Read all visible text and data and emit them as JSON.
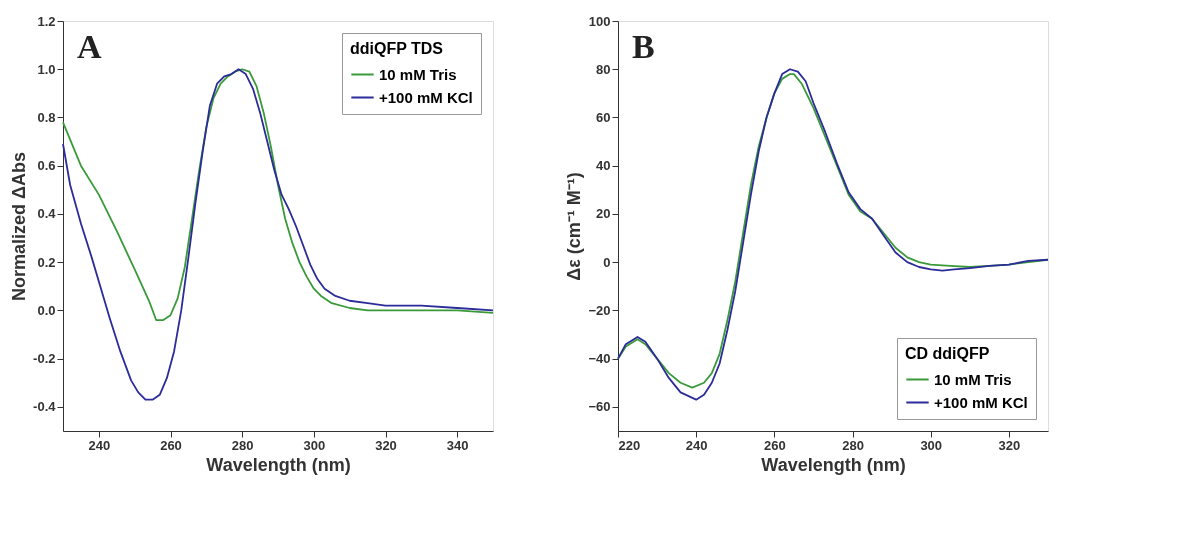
{
  "chart_data": [
    {
      "type": "line",
      "title": "A",
      "xlabel": "Wavelength (nm)",
      "ylabel": "Normalized ΔAbs",
      "legend_title": "ddiQFP TDS",
      "legend": "top right",
      "grid": false,
      "xlim": [
        230,
        350
      ],
      "xticks": [
        240,
        260,
        280,
        300,
        320,
        340
      ],
      "ylim": [
        -0.5,
        1.2
      ],
      "yticks": [
        {
          "value": -0.4,
          "label": "-0.4"
        },
        {
          "value": -0.2,
          "label": "-0.2"
        },
        {
          "value": 0,
          "label": "0.0"
        },
        {
          "value": 0.2,
          "label": "0.2"
        },
        {
          "value": 0.4,
          "label": "0.4"
        },
        {
          "value": 0.6,
          "label": "0.6"
        },
        {
          "value": 0.8,
          "label": "0.8"
        },
        {
          "value": 1,
          "label": "1.0"
        },
        {
          "value": 1.2,
          "label": "1.2"
        }
      ],
      "series": [
        {
          "name": "10 mM Tris",
          "color": "#3a9a3a",
          "x": [
            230,
            235,
            240,
            245,
            250,
            254,
            256,
            258,
            260,
            262,
            264,
            266,
            268,
            270,
            272,
            274,
            276,
            278,
            280,
            282,
            284,
            286,
            288,
            290,
            292,
            294,
            296,
            298,
            300,
            302,
            305,
            310,
            315,
            320,
            330,
            340,
            350
          ],
          "values": [
            0.78,
            0.6,
            0.48,
            0.33,
            0.17,
            0.04,
            -0.04,
            -0.04,
            -0.02,
            0.05,
            0.18,
            0.38,
            0.58,
            0.76,
            0.88,
            0.94,
            0.97,
            0.99,
            1.0,
            0.99,
            0.93,
            0.82,
            0.68,
            0.52,
            0.38,
            0.28,
            0.2,
            0.14,
            0.09,
            0.06,
            0.03,
            0.01,
            0.0,
            0.0,
            0.0,
            0.0,
            -0.01
          ]
        },
        {
          "name": "+100 mM KCl",
          "color": "#2b2b9a",
          "x": [
            230,
            232,
            235,
            238,
            240,
            243,
            246,
            249,
            251,
            253,
            255,
            257,
            259,
            261,
            263,
            265,
            267,
            269,
            271,
            273,
            275,
            277,
            279,
            281,
            283,
            285,
            287,
            289,
            291,
            293,
            295,
            297,
            299,
            301,
            303,
            306,
            310,
            315,
            320,
            330,
            340,
            350
          ],
          "values": [
            0.69,
            0.52,
            0.36,
            0.22,
            0.12,
            -0.03,
            -0.17,
            -0.29,
            -0.34,
            -0.37,
            -0.37,
            -0.35,
            -0.28,
            -0.17,
            0.0,
            0.22,
            0.45,
            0.66,
            0.85,
            0.94,
            0.97,
            0.98,
            1.0,
            0.98,
            0.92,
            0.82,
            0.7,
            0.58,
            0.48,
            0.42,
            0.35,
            0.27,
            0.19,
            0.13,
            0.09,
            0.06,
            0.04,
            0.03,
            0.02,
            0.02,
            0.01,
            0.0
          ]
        }
      ]
    },
    {
      "type": "line",
      "title": "B",
      "xlabel": "Wavelength (nm)",
      "ylabel": "Δε (cm⁻¹ M⁻¹)",
      "legend_title": "CD ddiQFP",
      "legend": "bottom right",
      "grid": false,
      "xlim": [
        220,
        330
      ],
      "xticks": [
        220,
        240,
        260,
        280,
        300,
        320
      ],
      "ylim": [
        -70,
        100
      ],
      "yticks": [
        -60,
        -40,
        -20,
        0,
        20,
        40,
        60,
        80,
        100
      ],
      "series": [
        {
          "name": "10 mM Tris",
          "color": "#3a9a3a",
          "x": [
            220,
            222,
            225,
            227,
            230,
            233,
            236,
            239,
            242,
            244,
            246,
            248,
            250,
            252,
            254,
            256,
            258,
            260,
            262,
            264,
            265,
            267,
            270,
            273,
            276,
            279,
            282,
            285,
            288,
            291,
            294,
            297,
            300,
            305,
            310,
            315,
            320,
            325,
            330
          ],
          "values": [
            -40,
            -35,
            -32,
            -34,
            -40,
            -46,
            -50,
            -52,
            -50,
            -46,
            -38,
            -24,
            -8,
            12,
            32,
            48,
            60,
            70,
            76,
            78,
            78,
            74,
            64,
            52,
            40,
            28,
            21,
            18,
            12,
            6,
            2,
            0,
            -1,
            -1.5,
            -2,
            -1.5,
            -1,
            0,
            1
          ]
        },
        {
          "name": "+100 mM KCl",
          "color": "#2b2b9a",
          "x": [
            220,
            222,
            225,
            227,
            230,
            233,
            236,
            240,
            242,
            244,
            246,
            248,
            250,
            252,
            254,
            256,
            258,
            260,
            262,
            264,
            266,
            268,
            270,
            273,
            276,
            279,
            282,
            285,
            288,
            291,
            294,
            297,
            300,
            303,
            306,
            310,
            315,
            320,
            325,
            330
          ],
          "values": [
            -40,
            -34,
            -31,
            -33,
            -40,
            -48,
            -54,
            -57,
            -55,
            -50,
            -42,
            -28,
            -12,
            8,
            28,
            46,
            60,
            70,
            78,
            80,
            79,
            75,
            66,
            54,
            41,
            29,
            22,
            18,
            11,
            4,
            0,
            -2,
            -3,
            -3.5,
            -3,
            -2.5,
            -1.5,
            -1,
            0.5,
            1
          ]
        }
      ]
    }
  ]
}
